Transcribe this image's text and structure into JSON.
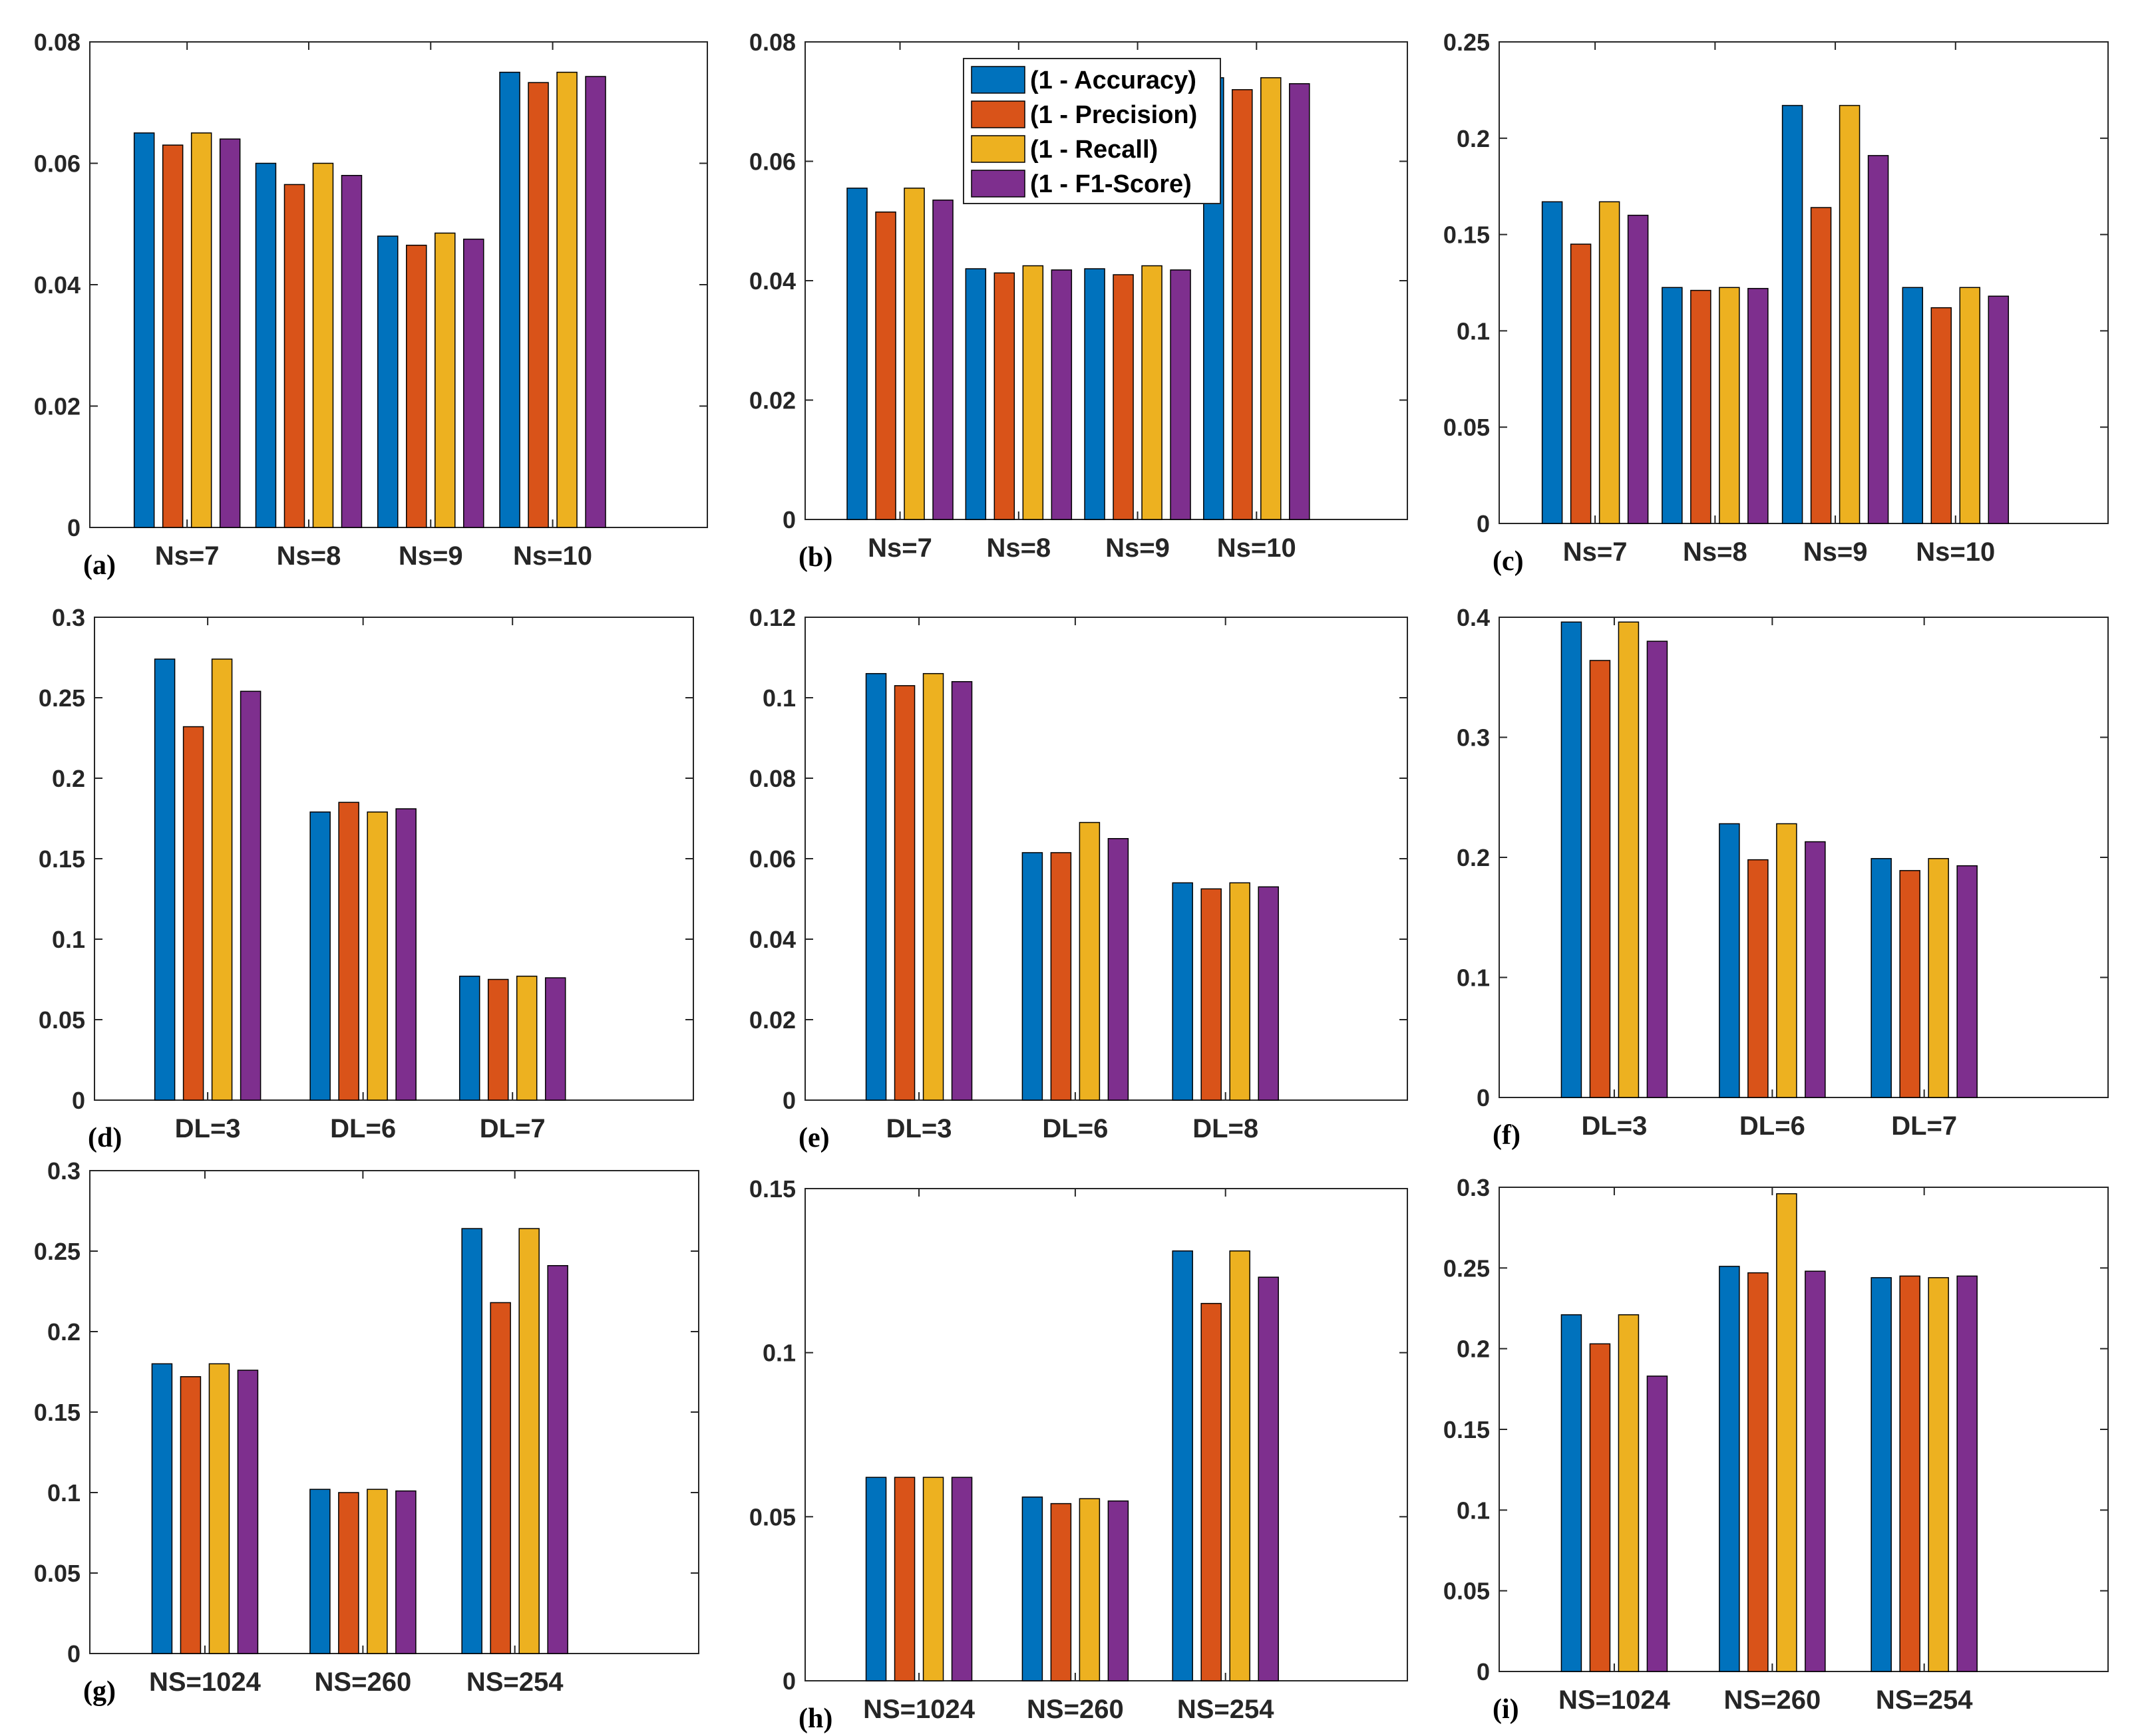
{
  "legend": [
    {
      "label": "(1 - Accuracy)",
      "color": "#0072BD"
    },
    {
      "label": "(1 - Precision)",
      "color": "#D95319"
    },
    {
      "label": "(1 - Recall)",
      "color": "#EDB120"
    },
    {
      "label": "(1 - F1-Score)",
      "color": "#7E2F8E"
    }
  ],
  "chart_data": [
    {
      "panel": "(a)",
      "type": "bar",
      "categories": [
        "Ns=7",
        "Ns=8",
        "Ns=9",
        "Ns=10"
      ],
      "ylim": [
        0,
        0.08
      ],
      "yticks": [
        "0",
        "0.02",
        "0.04",
        "0.06",
        "0.08"
      ],
      "series": [
        {
          "name": "(1 - Accuracy)",
          "values": [
            0.065,
            0.06,
            0.048,
            0.075
          ]
        },
        {
          "name": "(1 - Precision)",
          "values": [
            0.063,
            0.0565,
            0.0465,
            0.0733
          ]
        },
        {
          "name": "(1 - Recall)",
          "values": [
            0.065,
            0.06,
            0.0485,
            0.075
          ]
        },
        {
          "name": "(1 - F1-Score)",
          "values": [
            0.064,
            0.058,
            0.0475,
            0.0743
          ]
        }
      ]
    },
    {
      "panel": "(b)",
      "type": "bar",
      "categories": [
        "Ns=7",
        "Ns=8",
        "Ns=9",
        "Ns=10"
      ],
      "ylim": [
        0,
        0.08
      ],
      "yticks": [
        "0",
        "0.02",
        "0.04",
        "0.06",
        "0.08"
      ],
      "legend": true,
      "series": [
        {
          "name": "(1 - Accuracy)",
          "values": [
            0.0555,
            0.042,
            0.042,
            0.074
          ]
        },
        {
          "name": "(1 - Precision)",
          "values": [
            0.0515,
            0.0413,
            0.041,
            0.072
          ]
        },
        {
          "name": "(1 - Recall)",
          "values": [
            0.0555,
            0.0425,
            0.0425,
            0.074
          ]
        },
        {
          "name": "(1 - F1-Score)",
          "values": [
            0.0535,
            0.0418,
            0.0418,
            0.073
          ]
        }
      ]
    },
    {
      "panel": "(c)",
      "type": "bar",
      "categories": [
        "Ns=7",
        "Ns=8",
        "Ns=9",
        "Ns=10"
      ],
      "ylim": [
        0,
        0.25
      ],
      "yticks": [
        "0",
        "0.05",
        "0.1",
        "0.15",
        "0.2",
        "0.25"
      ],
      "series": [
        {
          "name": "(1 - Accuracy)",
          "values": [
            0.167,
            0.1225,
            0.217,
            0.1225
          ]
        },
        {
          "name": "(1 - Precision)",
          "values": [
            0.145,
            0.121,
            0.164,
            0.112
          ]
        },
        {
          "name": "(1 - Recall)",
          "values": [
            0.167,
            0.1225,
            0.217,
            0.1225
          ]
        },
        {
          "name": "(1 - F1-Score)",
          "values": [
            0.16,
            0.122,
            0.191,
            0.118
          ]
        }
      ]
    },
    {
      "panel": "(d)",
      "type": "bar",
      "categories": [
        "DL=3",
        "DL=6",
        "DL=7"
      ],
      "ylim": [
        0,
        0.3
      ],
      "yticks": [
        "0",
        "0.05",
        "0.1",
        "0.15",
        "0.2",
        "0.25",
        "0.3"
      ],
      "series": [
        {
          "name": "(1 - Accuracy)",
          "values": [
            0.274,
            0.179,
            0.077
          ]
        },
        {
          "name": "(1 - Precision)",
          "values": [
            0.232,
            0.185,
            0.075
          ]
        },
        {
          "name": "(1 - Recall)",
          "values": [
            0.274,
            0.179,
            0.077
          ]
        },
        {
          "name": "(1 - F1-Score)",
          "values": [
            0.254,
            0.181,
            0.076
          ]
        }
      ]
    },
    {
      "panel": "(e)",
      "type": "bar",
      "categories": [
        "DL=3",
        "DL=6",
        "DL=8"
      ],
      "ylim": [
        0,
        0.12
      ],
      "yticks": [
        "0",
        "0.02",
        "0.04",
        "0.06",
        "0.08",
        "0.1",
        "0.12"
      ],
      "series": [
        {
          "name": "(1 - Accuracy)",
          "values": [
            0.106,
            0.0615,
            0.054
          ]
        },
        {
          "name": "(1 - Precision)",
          "values": [
            0.103,
            0.0615,
            0.0525
          ]
        },
        {
          "name": "(1 - Recall)",
          "values": [
            0.106,
            0.069,
            0.054
          ]
        },
        {
          "name": "(1 - F1-Score)",
          "values": [
            0.104,
            0.065,
            0.053
          ]
        }
      ]
    },
    {
      "panel": "(f)",
      "type": "bar",
      "categories": [
        "DL=3",
        "DL=6",
        "DL=7"
      ],
      "ylim": [
        0,
        0.4
      ],
      "yticks": [
        "0",
        "0.1",
        "0.2",
        "0.3",
        "0.4"
      ],
      "series": [
        {
          "name": "(1 - Accuracy)",
          "values": [
            0.396,
            0.228,
            0.199
          ]
        },
        {
          "name": "(1 - Precision)",
          "values": [
            0.364,
            0.198,
            0.189
          ]
        },
        {
          "name": "(1 - Recall)",
          "values": [
            0.396,
            0.228,
            0.199
          ]
        },
        {
          "name": "(1 - F1-Score)",
          "values": [
            0.38,
            0.213,
            0.193
          ]
        }
      ]
    },
    {
      "panel": "(g)",
      "type": "bar",
      "categories": [
        "NS=1024",
        "NS=260",
        "NS=254"
      ],
      "ylim": [
        0,
        0.3
      ],
      "yticks": [
        "0",
        "0.05",
        "0.1",
        "0.15",
        "0.2",
        "0.25",
        "0.3"
      ],
      "series": [
        {
          "name": "(1 - Accuracy)",
          "values": [
            0.18,
            0.102,
            0.264
          ]
        },
        {
          "name": "(1 - Precision)",
          "values": [
            0.172,
            0.1,
            0.218
          ]
        },
        {
          "name": "(1 - Recall)",
          "values": [
            0.18,
            0.102,
            0.264
          ]
        },
        {
          "name": "(1 - F1-Score)",
          "values": [
            0.176,
            0.101,
            0.241
          ]
        }
      ]
    },
    {
      "panel": "(h)",
      "type": "bar",
      "categories": [
        "NS=1024",
        "NS=260",
        "NS=254"
      ],
      "ylim": [
        0,
        0.15
      ],
      "yticks": [
        "0",
        "0.05",
        "0.1",
        "0.15"
      ],
      "series": [
        {
          "name": "(1 - Accuracy)",
          "values": [
            0.062,
            0.056,
            0.131
          ]
        },
        {
          "name": "(1 - Precision)",
          "values": [
            0.062,
            0.054,
            0.115
          ]
        },
        {
          "name": "(1 - Recall)",
          "values": [
            0.062,
            0.0555,
            0.131
          ]
        },
        {
          "name": "(1 - F1-Score)",
          "values": [
            0.062,
            0.0548,
            0.123
          ]
        }
      ]
    },
    {
      "panel": "(i)",
      "type": "bar",
      "categories": [
        "NS=1024",
        "NS=260",
        "NS=254"
      ],
      "ylim": [
        0,
        0.3
      ],
      "yticks": [
        "0",
        "0.05",
        "0.1",
        "0.15",
        "0.2",
        "0.25",
        "0.3"
      ],
      "series": [
        {
          "name": "(1 - Accuracy)",
          "values": [
            0.221,
            0.251,
            0.244
          ]
        },
        {
          "name": "(1 - Precision)",
          "values": [
            0.203,
            0.247,
            0.245
          ]
        },
        {
          "name": "(1 - Recall)",
          "values": [
            0.221,
            0.296,
            0.244
          ]
        },
        {
          "name": "(1 - F1-Score)",
          "values": [
            0.183,
            0.248,
            0.245
          ]
        }
      ]
    }
  ]
}
